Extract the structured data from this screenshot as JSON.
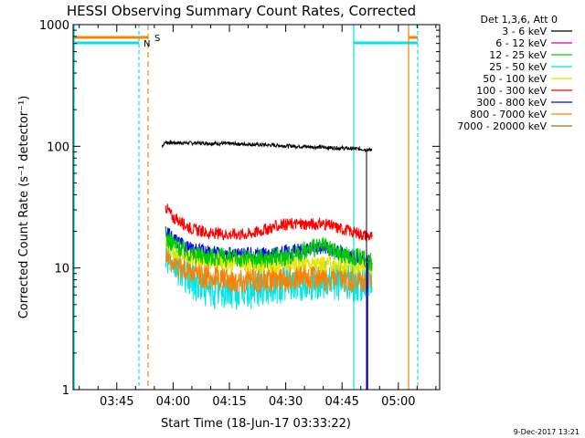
{
  "chart_data": {
    "type": "line",
    "title": "HESSI Observing Summary Count Rates, Corrected",
    "xlabel": "Start Time (18-Jun-17 03:33:22)",
    "ylabel": "Corrected Count Rate (s⁻¹ detector⁻¹)",
    "yscale": "log",
    "ylim": [
      1,
      1000
    ],
    "xlim": [
      "03:33:22",
      "05:11:00"
    ],
    "x_ticks": [
      "03:45",
      "04:00",
      "04:15",
      "04:30",
      "04:45",
      "05:00"
    ],
    "y_ticks": [
      "1",
      "10",
      "100",
      "1000"
    ],
    "grid": false,
    "legend_position": "top-right",
    "legend_title": "Det 1,3,6, Att 0",
    "timestamp": "9-Dec-2017 13:21",
    "series": [
      {
        "name": "3 - 6 keV",
        "color": "#000000",
        "x": [
          "03:57",
          "03:58",
          "04:00",
          "04:10",
          "04:20",
          "04:30",
          "04:40",
          "04:50",
          "04:53"
        ],
        "y": [
          100,
          108,
          107,
          106,
          104,
          101,
          98,
          95,
          93
        ]
      },
      {
        "name": "6 - 12 keV",
        "color": "#cc00cc",
        "x": [],
        "y": []
      },
      {
        "name": "12 - 25 keV",
        "color": "#00cc00",
        "x": [
          "03:58",
          "04:00",
          "04:05",
          "04:15",
          "04:25",
          "04:30",
          "04:35",
          "04:40",
          "04:45",
          "04:50",
          "04:53"
        ],
        "y": [
          18,
          16,
          13,
          12,
          12,
          12.5,
          14,
          15,
          13,
          12,
          11
        ]
      },
      {
        "name": "25 - 50 keV",
        "color": "#00e5e5",
        "x": [
          "03:58",
          "04:00",
          "04:05",
          "04:10",
          "04:20",
          "04:30",
          "04:40",
          "04:50",
          "04:53"
        ],
        "y": [
          14,
          11,
          8,
          6.5,
          6.5,
          7.5,
          8,
          7.5,
          7
        ]
      },
      {
        "name": "50 - 100 keV",
        "color": "#e5e500",
        "x": [
          "03:58",
          "04:00",
          "04:05",
          "04:15",
          "04:25",
          "04:35",
          "04:45",
          "04:53"
        ],
        "y": [
          16,
          14,
          12,
          11,
          10.5,
          11,
          10.5,
          10
        ]
      },
      {
        "name": "100 - 300 keV",
        "color": "#ff0000",
        "x": [
          "03:58",
          "04:00",
          "04:05",
          "04:10",
          "04:20",
          "04:30",
          "04:40",
          "04:50",
          "04:53"
        ],
        "y": [
          32,
          26,
          21,
          19,
          19,
          23,
          23,
          19,
          18
        ]
      },
      {
        "name": "300 - 800 keV",
        "color": "#0000ff",
        "x": [
          "03:58",
          "04:00",
          "04:05",
          "04:15",
          "04:25",
          "04:30",
          "04:35",
          "04:40",
          "04:45",
          "04:50",
          "04:53"
        ],
        "y": [
          20,
          17,
          14,
          13,
          13,
          13.5,
          14,
          15,
          13,
          12,
          11
        ]
      },
      {
        "name": "800 - 7000 keV",
        "color": "#ff8000",
        "x": [
          "03:58",
          "04:00",
          "04:05",
          "04:15",
          "04:25",
          "04:35",
          "04:45",
          "04:53"
        ],
        "y": [
          14,
          11,
          9,
          8,
          8,
          8.5,
          8,
          7.5
        ]
      },
      {
        "name": "7000 - 20000 keV",
        "color": "#a07800",
        "x": [],
        "y": []
      }
    ],
    "annotations": {
      "flags": [
        {
          "label": "S",
          "color": "#ff8000"
        },
        {
          "label": "N",
          "color": "#00e5e5"
        }
      ]
    }
  }
}
